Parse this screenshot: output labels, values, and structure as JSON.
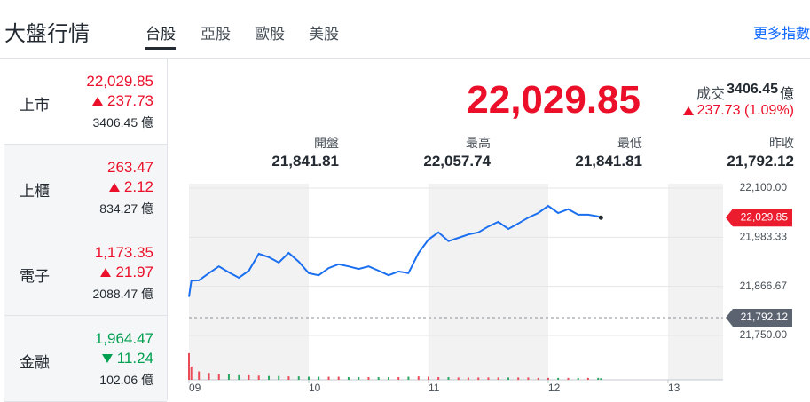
{
  "header": {
    "title": "大盤行情",
    "tabs": [
      "台股",
      "亞股",
      "歐股",
      "美股"
    ],
    "active_tab": 0,
    "more": "更多指數"
  },
  "sidebar": [
    {
      "name": "上市",
      "price": "22,029.85",
      "change": "237.73",
      "direction": "up",
      "volume": "3406.45 億"
    },
    {
      "name": "上櫃",
      "price": "263.47",
      "change": "2.12",
      "direction": "up",
      "volume": "834.27 億"
    },
    {
      "name": "電子",
      "price": "1,173.35",
      "change": "21.97",
      "direction": "up",
      "volume": "2088.47 億"
    },
    {
      "name": "金融",
      "price": "1,964.47",
      "change": "11.24",
      "direction": "down",
      "volume": "102.06 億"
    }
  ],
  "active_row": 0,
  "quote": {
    "price": "22,029.85",
    "volume_label": "成交",
    "volume": "3406.45",
    "volume_unit": "億",
    "change": "237.73 (1.09%)",
    "direction": "up"
  },
  "stats": [
    {
      "label": "開盤",
      "value": "21,841.81"
    },
    {
      "label": "最高",
      "value": "22,057.74"
    },
    {
      "label": "最低",
      "value": "21,841.81"
    },
    {
      "label": "昨收",
      "value": "21,792.12"
    }
  ],
  "chart_data": {
    "type": "line",
    "color": "#1a6ff0",
    "x": [
      9,
      9.02,
      9.083,
      9.167,
      9.25,
      9.333,
      9.417,
      9.5,
      9.583,
      9.667,
      9.75,
      9.833,
      9.917,
      10,
      10.083,
      10.167,
      10.25,
      10.333,
      10.417,
      10.5,
      10.583,
      10.667,
      10.75,
      10.833,
      10.917,
      11,
      11.083,
      11.167,
      11.25,
      11.333,
      11.417,
      11.5,
      11.583,
      11.667,
      11.75,
      11.833,
      11.917,
      12,
      12.083,
      12.167,
      12.25,
      12.333,
      12.417,
      12.44
    ],
    "values": [
      21841.81,
      21880,
      21881,
      21898,
      21914,
      21900,
      21887,
      21904,
      21944,
      21936,
      21923,
      21946,
      21925,
      21898,
      21893,
      21910,
      21919,
      21914,
      21908,
      21914,
      21904,
      21893,
      21902,
      21898,
      21946,
      21978,
      21995,
      21974,
      21982,
      21990,
      21995,
      22009,
      22020,
      22003,
      22016,
      22030,
      22041,
      22057.74,
      22041,
      22050,
      22037,
      22037,
      22033,
      22029.85
    ],
    "volume": [
      70,
      35,
      22,
      18,
      15,
      14,
      12,
      12,
      11,
      10,
      10,
      9,
      9,
      8,
      8,
      8,
      8,
      7,
      7,
      7,
      7,
      7,
      7,
      8,
      9,
      8,
      7,
      7,
      6,
      6,
      6,
      6,
      6,
      6,
      6,
      6,
      5,
      5,
      5,
      5,
      5,
      5,
      5,
      4
    ],
    "vlim": [
      0,
      100
    ],
    "up_color": "#eb4a57",
    "down_color": "#2aa862",
    "xlim": [
      9,
      13.46
    ],
    "xticks": [
      {
        "value": 9,
        "label": "09"
      },
      10,
      11,
      12,
      13
    ],
    "ylim": [
      21750,
      22100
    ],
    "yticks": [
      {
        "value": 22100,
        "label": "22,100.00"
      },
      {
        "value": 21983.33,
        "label": "21,983.33"
      },
      {
        "value": 21866.67,
        "label": "21,866.67"
      },
      {
        "value": 21750,
        "label": "21,750.00"
      }
    ],
    "grid": true,
    "reference_lines": [
      {
        "value": 22029.85,
        "label": "22,029.85",
        "color": "#eb1c2d",
        "dashed": false
      },
      {
        "value": 21792.12,
        "label": "21,792.12",
        "color": "#5b6270",
        "dashed": true
      }
    ]
  }
}
